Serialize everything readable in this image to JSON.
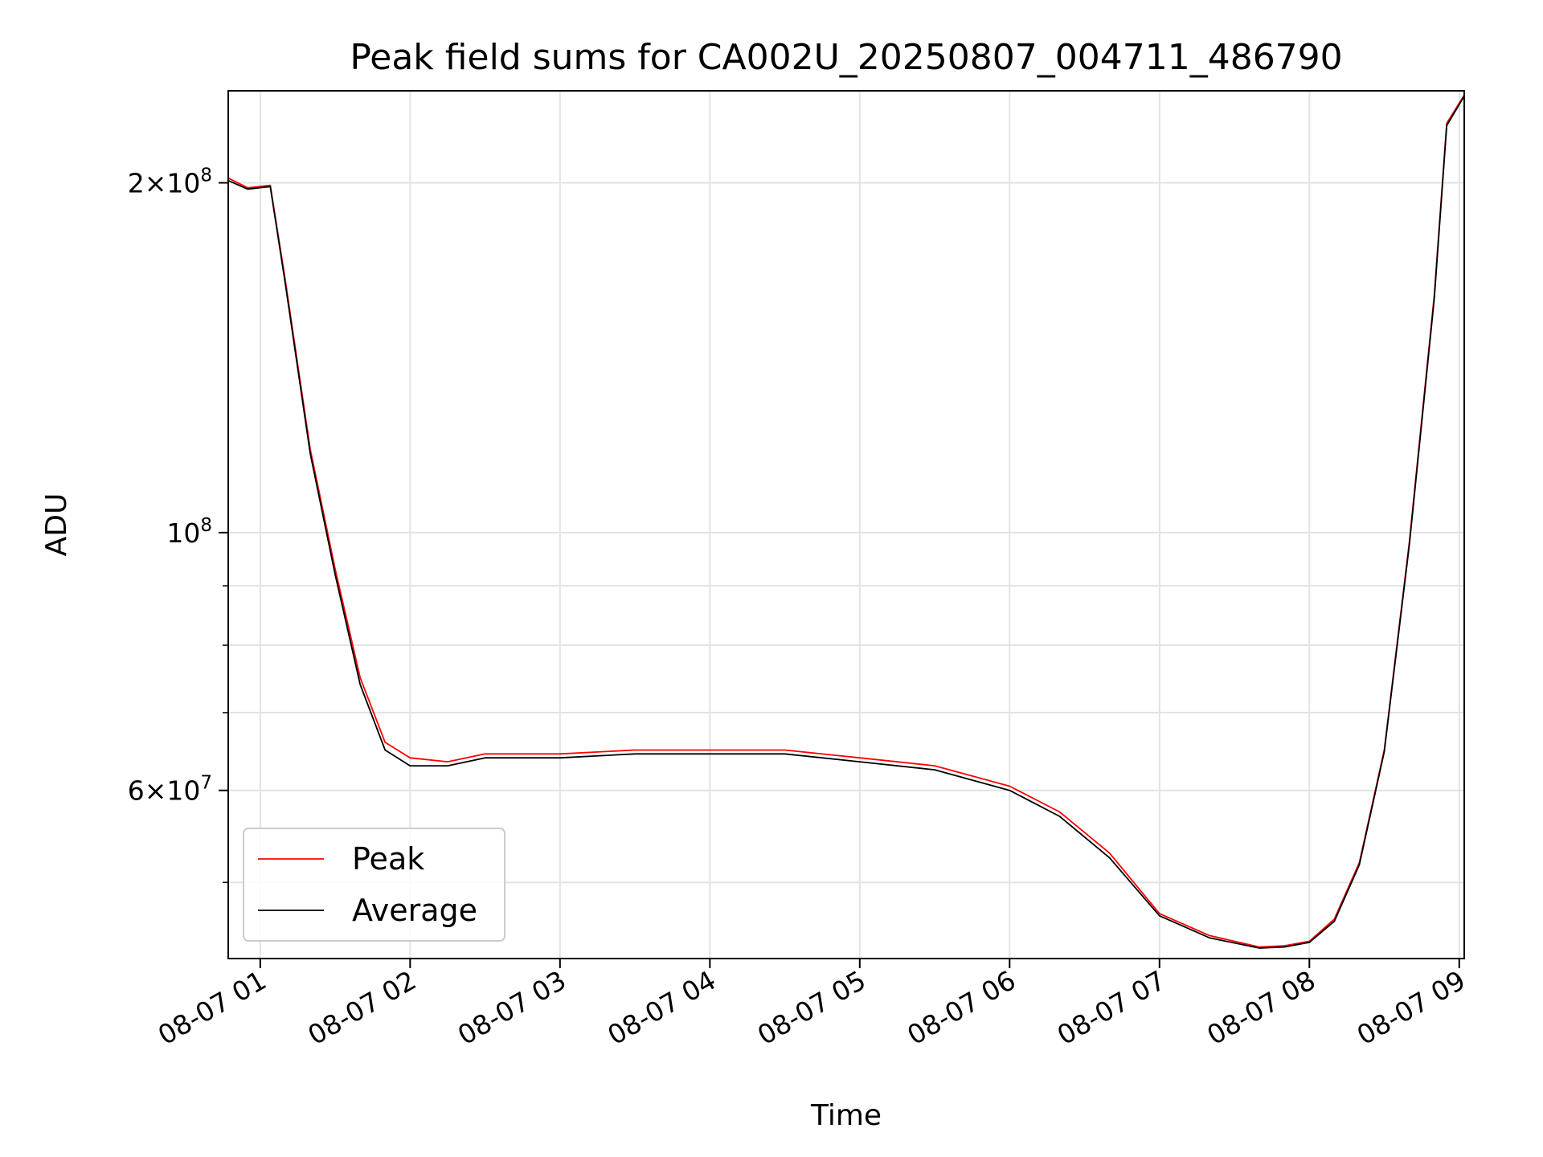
{
  "chart_data": {
    "type": "line",
    "title": "Peak field sums for CA002U_20250807_004711_486790",
    "xlabel": "Time",
    "ylabel": "ADU",
    "y_scale": "log",
    "ylim": [
      43000000,
      240000000
    ],
    "xlim": [
      "2025-08-07 00:47:11",
      "2025-08-07 09:02:00"
    ],
    "x_tick_labels": [
      "08-07 01",
      "08-07 02",
      "08-07 03",
      "08-07 04",
      "08-07 05",
      "08-07 06",
      "08-07 07",
      "08-07 08",
      "08-07 09"
    ],
    "x_ticks": [
      "2025-08-07 01:00",
      "2025-08-07 02:00",
      "2025-08-07 03:00",
      "2025-08-07 04:00",
      "2025-08-07 05:00",
      "2025-08-07 06:00",
      "2025-08-07 07:00",
      "2025-08-07 08:00",
      "2025-08-07 09:00"
    ],
    "y_ticks": [
      {
        "value": 200000000,
        "mantissa": "2",
        "exp": "8"
      },
      {
        "value": 100000000,
        "mantissa": "",
        "exp": "8"
      },
      {
        "value": 60000000,
        "mantissa": "6",
        "exp": "7"
      }
    ],
    "y_minor_ticks": [
      50000000,
      70000000,
      80000000,
      90000000
    ],
    "grid": true,
    "legend_position": "lower-left",
    "series": [
      {
        "name": "Peak",
        "color": "#ff0000",
        "x": [
          "2025-08-07 00:47",
          "2025-08-07 00:55",
          "2025-08-07 01:04",
          "2025-08-07 01:10",
          "2025-08-07 01:20",
          "2025-08-07 01:30",
          "2025-08-07 01:40",
          "2025-08-07 01:50",
          "2025-08-07 02:00",
          "2025-08-07 02:15",
          "2025-08-07 02:30",
          "2025-08-07 03:00",
          "2025-08-07 03:30",
          "2025-08-07 04:00",
          "2025-08-07 04:30",
          "2025-08-07 05:00",
          "2025-08-07 05:30",
          "2025-08-07 06:00",
          "2025-08-07 06:20",
          "2025-08-07 06:40",
          "2025-08-07 07:00",
          "2025-08-07 07:20",
          "2025-08-07 07:40",
          "2025-08-07 07:50",
          "2025-08-07 08:00",
          "2025-08-07 08:10",
          "2025-08-07 08:20",
          "2025-08-07 08:30",
          "2025-08-07 08:40",
          "2025-08-07 08:50",
          "2025-08-07 08:55",
          "2025-08-07 09:02"
        ],
        "values": [
          202000000,
          198000000,
          199000000,
          165000000,
          118000000,
          93000000,
          75000000,
          66000000,
          64000000,
          63500000,
          64500000,
          64500000,
          65000000,
          65000000,
          65000000,
          64000000,
          63000000,
          60500000,
          57500000,
          53000000,
          47000000,
          45000000,
          44000000,
          44100000,
          44500000,
          46500000,
          52000000,
          65000000,
          98000000,
          160000000,
          225000000,
          238000000
        ]
      },
      {
        "name": "Average",
        "color": "#000000",
        "x": [
          "2025-08-07 00:47",
          "2025-08-07 00:55",
          "2025-08-07 01:04",
          "2025-08-07 01:10",
          "2025-08-07 01:20",
          "2025-08-07 01:30",
          "2025-08-07 01:40",
          "2025-08-07 01:50",
          "2025-08-07 02:00",
          "2025-08-07 02:15",
          "2025-08-07 02:30",
          "2025-08-07 03:00",
          "2025-08-07 03:30",
          "2025-08-07 04:00",
          "2025-08-07 04:30",
          "2025-08-07 05:00",
          "2025-08-07 05:30",
          "2025-08-07 06:00",
          "2025-08-07 06:20",
          "2025-08-07 06:40",
          "2025-08-07 07:00",
          "2025-08-07 07:20",
          "2025-08-07 07:40",
          "2025-08-07 07:50",
          "2025-08-07 08:00",
          "2025-08-07 08:10",
          "2025-08-07 08:20",
          "2025-08-07 08:30",
          "2025-08-07 08:40",
          "2025-08-07 08:50",
          "2025-08-07 08:55",
          "2025-08-07 09:02"
        ],
        "values": [
          201000000,
          197500000,
          198500000,
          164000000,
          117000000,
          92000000,
          74000000,
          65000000,
          63000000,
          63000000,
          64000000,
          64000000,
          64500000,
          64500000,
          64500000,
          63500000,
          62500000,
          60000000,
          57000000,
          52500000,
          46800000,
          44800000,
          43900000,
          44000000,
          44400000,
          46300000,
          51800000,
          64800000,
          97500000,
          159000000,
          224000000,
          237500000
        ]
      }
    ]
  }
}
